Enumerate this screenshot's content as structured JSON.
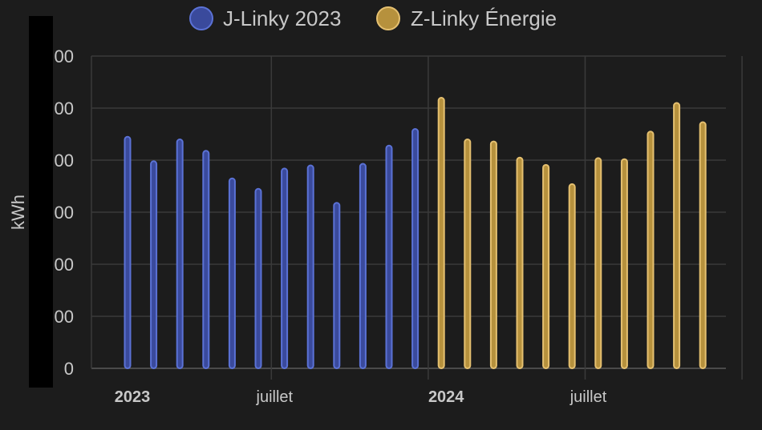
{
  "chart_data": {
    "type": "bar",
    "ylabel": "kWh",
    "ylim": [
      0,
      600
    ],
    "yticks": [
      {
        "value": 0,
        "label": "0"
      },
      {
        "value": 100,
        "label": "00"
      },
      {
        "value": 200,
        "label": "00"
      },
      {
        "value": 300,
        "label": "00"
      },
      {
        "value": 400,
        "label": "00"
      },
      {
        "value": 500,
        "label": "00"
      },
      {
        "value": 600,
        "label": "00"
      }
    ],
    "xticks": [
      {
        "label": "2023",
        "bold": true,
        "month_index": 0
      },
      {
        "label": "juillet",
        "bold": false,
        "month_index": 6
      },
      {
        "label": "2024",
        "bold": true,
        "month_index": 12
      },
      {
        "label": "juillet",
        "bold": false,
        "month_index": 18
      }
    ],
    "month_count": 24,
    "legend": {
      "position": "top-center"
    },
    "grid": true,
    "series": [
      {
        "name": "J-Linky 2023",
        "color": "#5b72d6",
        "fill": "#3a4a9c",
        "month_offset": 0,
        "values": [
          445,
          398,
          440,
          418,
          365,
          345,
          384,
          390,
          318,
          393,
          428,
          460
        ]
      },
      {
        "name": "Z-Linky Énergie",
        "color": "#e5c070",
        "fill": "#b6913d",
        "month_offset": 12,
        "values": [
          520,
          440,
          436,
          405,
          391,
          354,
          404,
          402,
          455,
          510,
          473
        ]
      }
    ]
  }
}
